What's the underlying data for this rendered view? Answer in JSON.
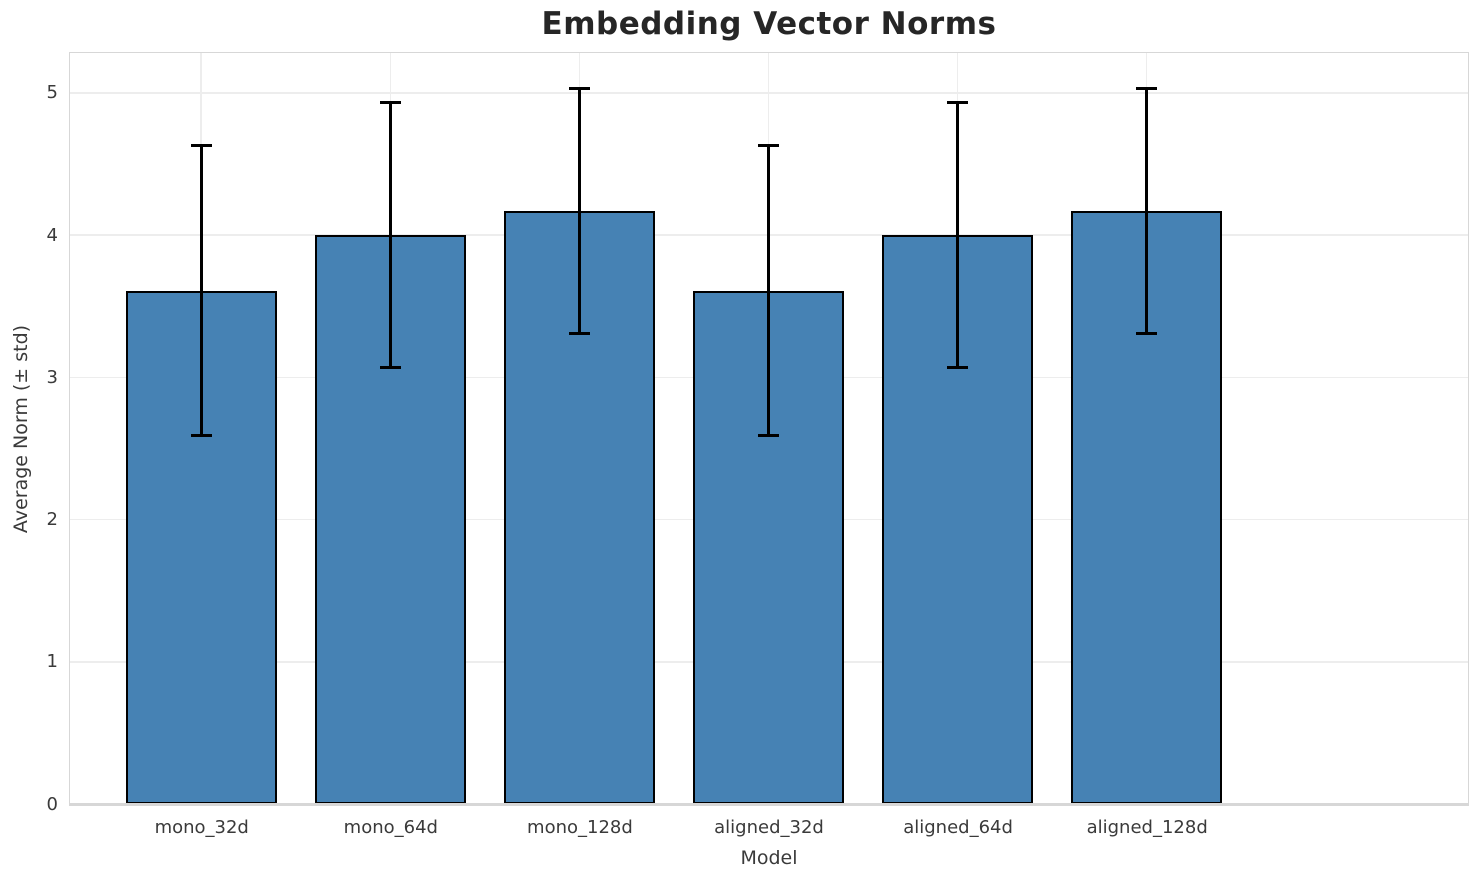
{
  "title": "Embedding Vector Norms",
  "chart_data": {
    "type": "bar",
    "title": "Embedding Vector Norms",
    "xlabel": "Model",
    "ylabel": "Average Norm (± std)",
    "categories": [
      "mono_32d",
      "mono_64d",
      "mono_128d",
      "aligned_32d",
      "aligned_64d",
      "aligned_128d"
    ],
    "series": [
      {
        "name": "Average Norm",
        "values": [
          3.61,
          4.0,
          4.17,
          3.61,
          4.0,
          4.17
        ]
      }
    ],
    "error_std": [
      1.02,
      0.93,
      0.86,
      1.02,
      0.93,
      0.86
    ],
    "yticks": [
      "0",
      "1",
      "2",
      "3",
      "4",
      "5"
    ],
    "ytick_values": [
      0,
      1,
      2,
      3,
      4,
      5
    ],
    "ylim": [
      0,
      5.28
    ],
    "grid": "both",
    "legend": false,
    "bar_width_units": 0.8,
    "colors": {
      "bar_fill": "#4682b4",
      "bar_edge": "#000000",
      "error_bar": "#000000",
      "grid_line": "#ededed",
      "spine": "#d7d7d7",
      "title_text": "#262626",
      "tick_text": "#3a3a3a"
    }
  }
}
